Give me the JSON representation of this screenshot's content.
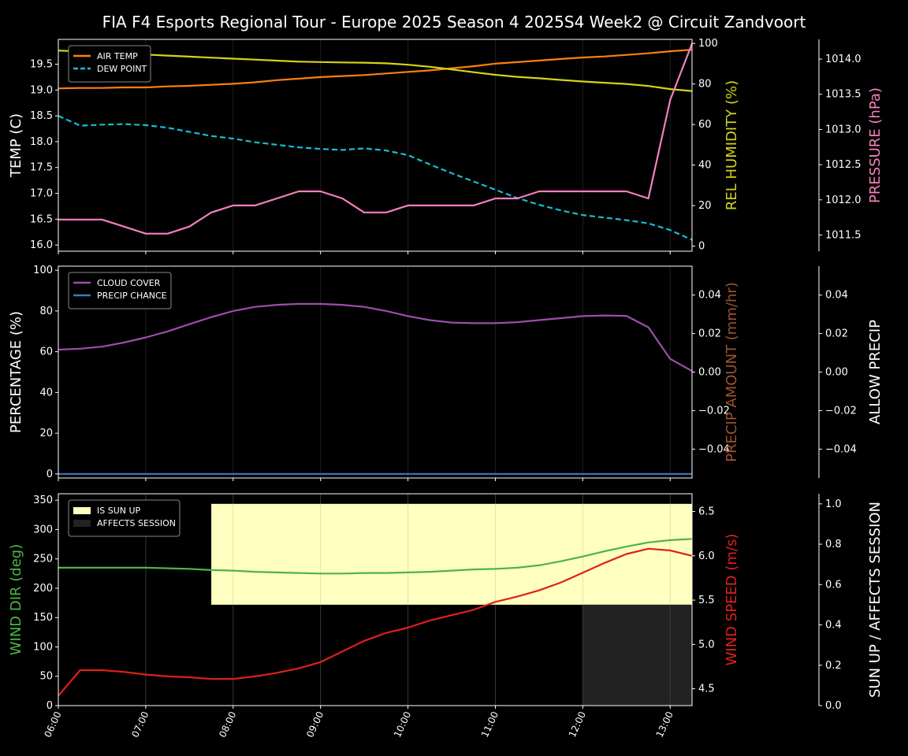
{
  "title": "FIA F4 Esports Regional Tour - Europe 2025 Season 4 2025S4 Week2 @ Circuit Zandvoort",
  "colors": {
    "background": "#000000",
    "axis": "#ffffff",
    "grid": "#333333",
    "air_temp": "#ff7f0e",
    "dew_point": "#17becf",
    "humidity": "#d4d41a",
    "pressure": "#f77fbe",
    "cloud": "#9b4fa8",
    "precip_chance": "#3a78c0",
    "precip_amount": "#a0522d",
    "wind_dir": "#4db547",
    "wind_speed": "#e0201a",
    "sun_up": "#ffffc0",
    "affects_session": "#222222"
  },
  "chart_data": [
    {
      "type": "line",
      "title": "FIA F4 Esports Regional Tour - Europe 2025 Season 4 2025S4 Week2 @ Circuit Zandvoort",
      "legend": {
        "placement": "upper-left",
        "entries": [
          "AIR TEMP",
          "DEW POINT"
        ]
      },
      "axes": {
        "left": {
          "label": "TEMP (C)",
          "ylim": [
            15.88,
            19.98
          ],
          "ticks": [
            "16.0",
            "16.5",
            "17.0",
            "17.5",
            "18.0",
            "18.5",
            "19.0",
            "19.5"
          ]
        },
        "right1": {
          "label": "REL HUMIDITY (%)",
          "ylim": [
            -2.5,
            102
          ],
          "ticks": [
            "0",
            "20",
            "40",
            "60",
            "80",
            "100"
          ]
        },
        "right2": {
          "label": "PRESSURE (hPa)",
          "ylim": [
            1011.27,
            1014.28
          ],
          "ticks": [
            "1011.5",
            "1012.0",
            "1012.5",
            "1013.0",
            "1013.5",
            "1014.0"
          ]
        }
      },
      "x": [
        "06:00",
        "06:15",
        "06:30",
        "06:45",
        "07:00",
        "07:15",
        "07:30",
        "07:45",
        "08:00",
        "08:15",
        "08:30",
        "08:45",
        "09:00",
        "09:15",
        "09:30",
        "09:45",
        "10:00",
        "10:15",
        "10:30",
        "10:45",
        "11:00",
        "11:15",
        "11:30",
        "11:45",
        "12:00",
        "12:15",
        "12:30",
        "12:45",
        "13:00",
        "13:15"
      ],
      "series": [
        {
          "name": "AIR TEMP",
          "axis": "left",
          "values": [
            19.03,
            19.04,
            19.04,
            19.05,
            19.05,
            19.07,
            19.08,
            19.1,
            19.12,
            19.15,
            19.19,
            19.22,
            19.25,
            19.27,
            19.29,
            19.32,
            19.35,
            19.38,
            19.42,
            19.46,
            19.51,
            19.54,
            19.57,
            19.6,
            19.63,
            19.65,
            19.68,
            19.71,
            19.75,
            19.78
          ]
        },
        {
          "name": "DEW POINT",
          "axis": "left",
          "values": [
            18.5,
            18.31,
            18.33,
            18.34,
            18.32,
            18.27,
            18.19,
            18.11,
            18.06,
            17.99,
            17.94,
            17.89,
            17.86,
            17.84,
            17.87,
            17.83,
            17.74,
            17.56,
            17.39,
            17.23,
            17.07,
            16.91,
            16.78,
            16.67,
            16.58,
            16.53,
            16.48,
            16.42,
            16.29,
            16.1
          ]
        },
        {
          "name": "REL HUMIDITY",
          "axis": "right1",
          "values": [
            96.5,
            96,
            95.5,
            95,
            94.5,
            94,
            93.5,
            93,
            92.5,
            92,
            91.5,
            91,
            90.8,
            90.6,
            90.5,
            90.2,
            89.5,
            88.5,
            87.2,
            85.8,
            84.5,
            83.5,
            82.8,
            82,
            81.2,
            80.6,
            80,
            79,
            77.5,
            76.5
          ]
        },
        {
          "name": "PRESSURE",
          "axis": "right2",
          "values": [
            1011.72,
            1011.72,
            1011.72,
            1011.62,
            1011.52,
            1011.52,
            1011.62,
            1011.82,
            1011.92,
            1011.92,
            1012.02,
            1012.12,
            1012.12,
            1012.02,
            1011.82,
            1011.82,
            1011.92,
            1011.92,
            1011.92,
            1011.92,
            1012.02,
            1012.02,
            1012.12,
            1012.12,
            1012.12,
            1012.12,
            1012.12,
            1012.02,
            1013.42,
            1014.22
          ]
        }
      ]
    },
    {
      "type": "line",
      "legend": {
        "placement": "upper-left",
        "entries": [
          "CLOUD COVER",
          "PRECIP CHANCE"
        ]
      },
      "axes": {
        "left": {
          "label": "PERCENTAGE (%)",
          "ylim": [
            -2,
            102
          ],
          "ticks": [
            "0",
            "20",
            "40",
            "60",
            "80",
            "100"
          ]
        },
        "right1": {
          "label": "PRECIP AMOUNT (mm/hr)",
          "ylim": [
            -0.055,
            0.055
          ],
          "ticks": [
            "−0.04",
            "−0.02",
            "0.00",
            "0.02",
            "0.04"
          ]
        },
        "right2": {
          "label": "ALLOW PRECIP",
          "ylim": [
            -0.055,
            0.055
          ],
          "ticks": [
            "−0.04",
            "−0.02",
            "0.00",
            "0.02",
            "0.04"
          ]
        }
      },
      "x": [
        "06:00",
        "06:15",
        "06:30",
        "06:45",
        "07:00",
        "07:15",
        "07:30",
        "07:45",
        "08:00",
        "08:15",
        "08:30",
        "08:45",
        "09:00",
        "09:15",
        "09:30",
        "09:45",
        "10:00",
        "10:15",
        "10:30",
        "10:45",
        "11:00",
        "11:15",
        "11:30",
        "11:45",
        "12:00",
        "12:15",
        "12:30",
        "12:45",
        "13:00",
        "13:15"
      ],
      "series": [
        {
          "name": "CLOUD COVER",
          "axis": "left",
          "values": [
            61,
            61.5,
            62.5,
            64.5,
            67,
            70,
            73.5,
            77,
            80,
            82,
            83,
            83.5,
            83.5,
            83,
            82,
            80,
            77.5,
            75.5,
            74.3,
            74,
            74,
            74.5,
            75.5,
            76.5,
            77.5,
            77.8,
            77.6,
            72,
            56.5,
            50.5
          ]
        },
        {
          "name": "PRECIP CHANCE",
          "axis": "left",
          "values": [
            0,
            0,
            0,
            0,
            0,
            0,
            0,
            0,
            0,
            0,
            0,
            0,
            0,
            0,
            0,
            0,
            0,
            0,
            0,
            0,
            0,
            0,
            0,
            0,
            0,
            0,
            0,
            0,
            0,
            0
          ]
        }
      ]
    },
    {
      "type": "line",
      "legend": {
        "placement": "upper-left",
        "entries": [
          "IS SUN UP",
          "AFFECTS SESSION"
        ]
      },
      "axes": {
        "left": {
          "label": "WIND DIR (deg)",
          "ylim": [
            0,
            361
          ],
          "ticks": [
            "0",
            "50",
            "100",
            "150",
            "200",
            "250",
            "300",
            "350"
          ]
        },
        "right1": {
          "label": "WIND SPEED (m/s)",
          "ylim": [
            4.31,
            6.7
          ],
          "ticks": [
            "4.5",
            "5.0",
            "5.5",
            "6.0",
            "6.5"
          ]
        },
        "right2": {
          "label": "SUN UP / AFFECTS SESSION",
          "ylim": [
            0,
            1.05
          ],
          "ticks": [
            "0.0",
            "0.2",
            "0.4",
            "0.6",
            "0.8",
            "1.0"
          ]
        }
      },
      "x_ticks": [
        "06:00",
        "07:00",
        "08:00",
        "09:00",
        "10:00",
        "11:00",
        "12:00",
        "13:00"
      ],
      "x": [
        "06:00",
        "06:15",
        "06:30",
        "06:45",
        "07:00",
        "07:15",
        "07:30",
        "07:45",
        "08:00",
        "08:15",
        "08:30",
        "08:45",
        "09:00",
        "09:15",
        "09:30",
        "09:45",
        "10:00",
        "10:15",
        "10:30",
        "10:45",
        "11:00",
        "11:15",
        "11:30",
        "11:45",
        "12:00",
        "12:15",
        "12:30",
        "12:45",
        "13:00",
        "13:15"
      ],
      "series": [
        {
          "name": "WIND DIR",
          "axis": "left",
          "values": [
            235,
            235,
            235,
            235,
            235,
            234,
            233,
            231,
            230,
            228,
            227,
            226,
            225,
            225,
            226,
            226,
            227,
            228,
            230,
            232,
            233,
            235,
            239,
            246,
            254,
            263,
            271,
            278,
            282,
            284
          ]
        },
        {
          "name": "WIND SPEED",
          "axis": "right1",
          "values": [
            4.42,
            4.71,
            4.71,
            4.69,
            4.66,
            4.64,
            4.63,
            4.61,
            4.61,
            4.64,
            4.68,
            4.73,
            4.8,
            4.92,
            5.04,
            5.13,
            5.19,
            5.27,
            5.33,
            5.39,
            5.48,
            5.54,
            5.61,
            5.7,
            5.81,
            5.92,
            6.02,
            6.08,
            6.06,
            6.0
          ]
        }
      ],
      "bands": [
        {
          "name": "IS SUN UP",
          "x_start": "07:45",
          "x_end": "13:15",
          "value": 1.0
        },
        {
          "name": "AFFECTS SESSION",
          "x_start": "12:00",
          "x_end": "13:15",
          "value": 1.0
        }
      ]
    }
  ]
}
